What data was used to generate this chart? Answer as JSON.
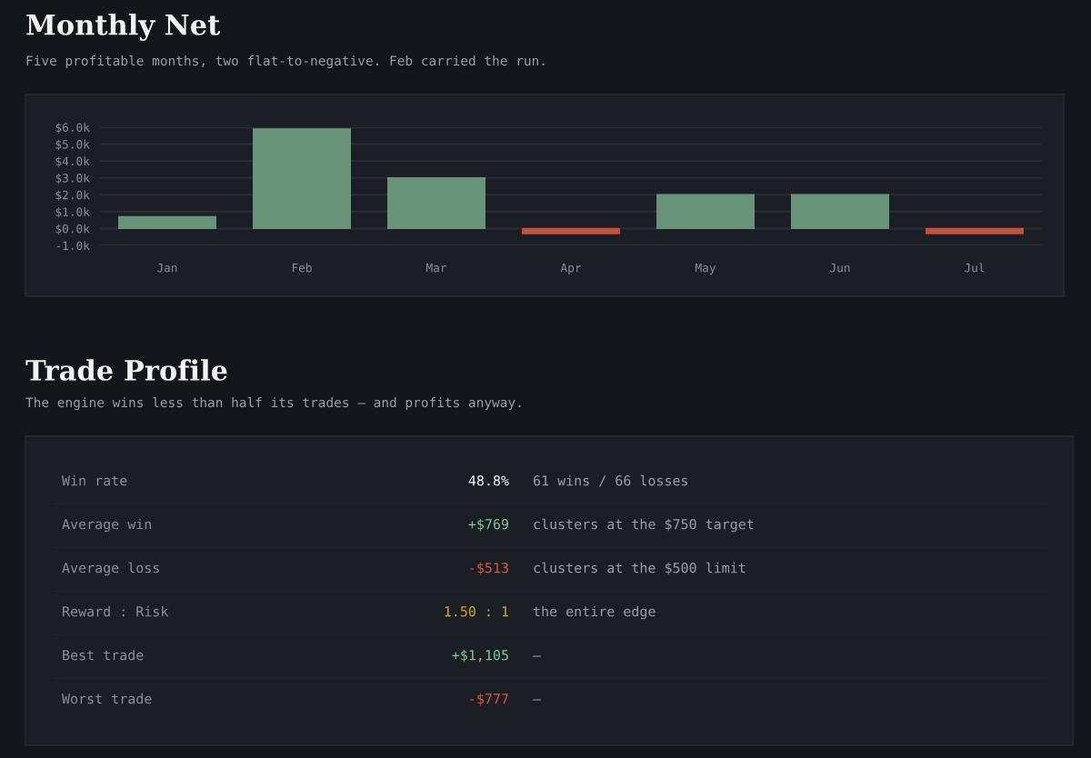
{
  "chart_data": [
    {
      "type": "bar",
      "title": "Monthly Net",
      "subtitle": "Five profitable months, two flat-to-negative. Feb carried the run.",
      "categories": [
        "Jan",
        "Feb",
        "Mar",
        "Apr",
        "May",
        "Jun",
        "Jul"
      ],
      "values": [
        0.7,
        5.9,
        3.0,
        -0.3,
        2.0,
        2.0,
        -0.3
      ],
      "colors": [
        "#6a9479",
        "#6a9479",
        "#6a9479",
        "#c0503f",
        "#6a9479",
        "#6a9479",
        "#c0503f"
      ],
      "ylim": [
        -1,
        6
      ],
      "yticks": [
        {
          "value": -1,
          "label": "-1.0k"
        },
        {
          "value": 0,
          "label": "$0.0k"
        },
        {
          "value": 1,
          "label": "$1.0k"
        },
        {
          "value": 2,
          "label": "$2.0k"
        },
        {
          "value": 3,
          "label": "$3.0k"
        },
        {
          "value": 4,
          "label": "$4.0k"
        },
        {
          "value": 5,
          "label": "$5.0k"
        },
        {
          "value": 6,
          "label": "$6.0k"
        }
      ],
      "grid": "y",
      "legend": false
    },
    {
      "type": "other",
      "title": "Trade Profile",
      "subtitle": "The engine wins less than half its trades — and profits anyway.",
      "annotations": [
        "Win rate",
        "48.8%",
        "61 wins / 66 losses",
        "Average win",
        "+$769",
        "clusters at the $750 target",
        "Average loss",
        "-$513",
        "clusters at the $500 limit",
        "Reward : Risk",
        "1.50 : 1",
        "the entire edge",
        "Best trade",
        "+$1,105",
        "—",
        "Worst trade",
        "-$777",
        "—"
      ],
      "colors": [
        "#8a8f98",
        "#f2f2f2",
        "#9aa0a8",
        "#8a8f98",
        "#7fc795",
        "#9aa0a8",
        "#8a8f98",
        "#d9573f",
        "#9aa0a8",
        "#8a8f98",
        "#d4a72c",
        "#9aa0a8",
        "#8a8f98",
        "#7fc795",
        "#9aa0a8",
        "#8a8f98",
        "#d9573f",
        "#9aa0a8"
      ]
    }
  ]
}
